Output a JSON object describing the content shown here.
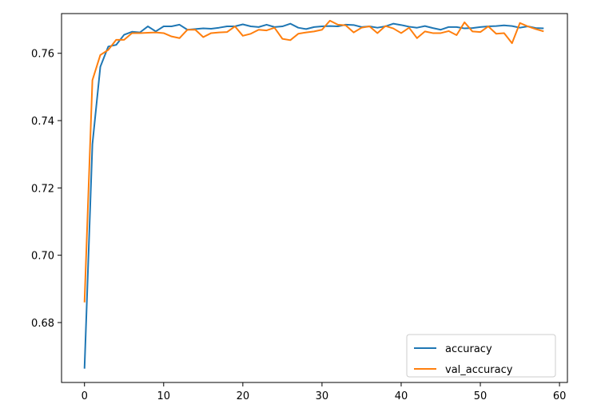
{
  "chart_data": {
    "type": "line",
    "title": "",
    "xlabel": "",
    "ylabel": "",
    "xlim": [
      -2.9,
      61.0
    ],
    "ylim": [
      0.6622,
      0.7718
    ],
    "xticks": [
      0,
      10,
      20,
      30,
      40,
      50,
      60
    ],
    "xtick_labels": [
      "0",
      "10",
      "20",
      "30",
      "40",
      "50",
      "60"
    ],
    "yticks": [
      0.68,
      0.7,
      0.72,
      0.74,
      0.76
    ],
    "ytick_labels": [
      "0.68",
      "0.70",
      "0.72",
      "0.74",
      "0.76"
    ],
    "grid": false,
    "legend_position": "lower-right",
    "x": [
      0,
      1,
      2,
      3,
      4,
      5,
      6,
      7,
      8,
      9,
      10,
      11,
      12,
      13,
      14,
      15,
      16,
      17,
      18,
      19,
      20,
      21,
      22,
      23,
      24,
      25,
      26,
      27,
      28,
      29,
      30,
      31,
      32,
      33,
      34,
      35,
      36,
      37,
      38,
      39,
      40,
      41,
      42,
      43,
      44,
      45,
      46,
      47,
      48,
      49,
      50,
      51,
      52,
      53,
      54,
      55,
      56,
      57,
      58
    ],
    "series": [
      {
        "name": "accuracy",
        "color": "#1f77b4",
        "values": [
          0.6663,
          0.733,
          0.756,
          0.762,
          0.7625,
          0.7655,
          0.7664,
          0.7662,
          0.768,
          0.7665,
          0.768,
          0.768,
          0.7685,
          0.767,
          0.7672,
          0.7674,
          0.7673,
          0.7676,
          0.768,
          0.768,
          0.7686,
          0.768,
          0.7678,
          0.7685,
          0.7678,
          0.768,
          0.7688,
          0.7676,
          0.7672,
          0.7678,
          0.768,
          0.7681,
          0.768,
          0.7685,
          0.7684,
          0.7678,
          0.768,
          0.7676,
          0.768,
          0.7688,
          0.7684,
          0.7679,
          0.7676,
          0.7681,
          0.7675,
          0.767,
          0.7678,
          0.7678,
          0.7674,
          0.7675,
          0.7678,
          0.768,
          0.7681,
          0.7683,
          0.7681,
          0.7676,
          0.768,
          0.7675,
          0.7674
        ]
      },
      {
        "name": "val_accuracy",
        "color": "#ff7f0e",
        "values": [
          0.686,
          0.752,
          0.7595,
          0.761,
          0.764,
          0.764,
          0.766,
          0.766,
          0.7661,
          0.7662,
          0.766,
          0.765,
          0.7645,
          0.767,
          0.767,
          0.7648,
          0.766,
          0.7662,
          0.7663,
          0.768,
          0.7652,
          0.7658,
          0.767,
          0.7668,
          0.7676,
          0.7643,
          0.7639,
          0.7658,
          0.7662,
          0.7665,
          0.767,
          0.7697,
          0.7685,
          0.7683,
          0.7662,
          0.7676,
          0.768,
          0.766,
          0.7681,
          0.7674,
          0.766,
          0.7676,
          0.7645,
          0.7665,
          0.766,
          0.766,
          0.7666,
          0.7654,
          0.7692,
          0.7665,
          0.7663,
          0.768,
          0.7658,
          0.766,
          0.763,
          0.769,
          0.768,
          0.7672,
          0.7665
        ]
      }
    ]
  }
}
